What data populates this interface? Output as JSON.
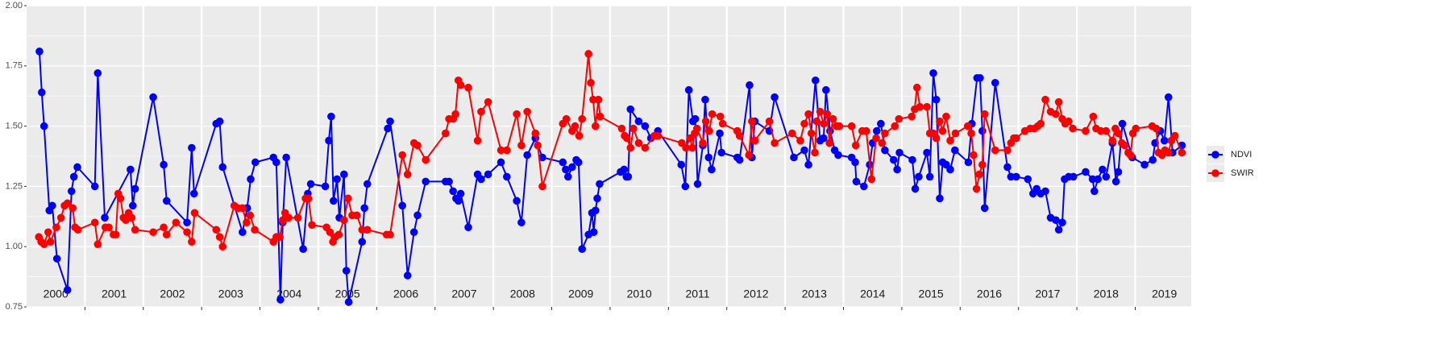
{
  "chart_data": {
    "type": "line",
    "xlim": [
      2000,
      2019.96
    ],
    "ylim": [
      0.75,
      2.0
    ],
    "yticks": [
      0.75,
      {
        "value": 1,
        "label": "1.00"
      },
      1.25,
      {
        "value": 1.5,
        "label": "1.50"
      },
      1.75,
      {
        "value": 2,
        "label": "2.00"
      }
    ],
    "yminor": [
      0.875,
      1.125,
      1.375,
      1.625,
      1.875
    ],
    "xgrid": [
      2001,
      2002,
      2003,
      2004,
      2005,
      2006,
      2007,
      2008,
      2009,
      2010,
      2011,
      2012,
      2013,
      2014,
      2015,
      2016,
      2017,
      2018,
      2019
    ],
    "xticks": [
      {
        "value": 2000.5,
        "label": "2000"
      },
      {
        "value": 2001.5,
        "label": "2001"
      },
      {
        "value": 2002.5,
        "label": "2002"
      },
      {
        "value": 2003.5,
        "label": "2003"
      },
      {
        "value": 2004.5,
        "label": "2004"
      },
      {
        "value": 2005.5,
        "label": "2005"
      },
      {
        "value": 2006.5,
        "label": "2006"
      },
      {
        "value": 2007.5,
        "label": "2007"
      },
      {
        "value": 2008.5,
        "label": "2008"
      },
      {
        "value": 2009.5,
        "label": "2009"
      },
      {
        "value": 2010.5,
        "label": "2010"
      },
      {
        "value": 2011.5,
        "label": "2011"
      },
      {
        "value": 2012.5,
        "label": "2012"
      },
      {
        "value": 2013.5,
        "label": "2013"
      },
      {
        "value": 2014.5,
        "label": "2014"
      },
      {
        "value": 2015.5,
        "label": "2015"
      },
      {
        "value": 2016.5,
        "label": "2016"
      },
      {
        "value": 2017.5,
        "label": "2017"
      },
      {
        "value": 2018.5,
        "label": "2018"
      },
      {
        "value": 2019.5,
        "label": "2019"
      }
    ],
    "grid": true,
    "legend": "right",
    "series": [
      {
        "name": "NDVI",
        "color": "#0000ff",
        "x": [
          2000.22,
          2000.26,
          2000.3,
          2000.39,
          2000.44,
          2000.52,
          2000.7,
          2000.77,
          2000.81,
          2000.87,
          2001.17,
          2001.22,
          2001.34,
          2001.78,
          2001.82,
          2001.86,
          2002.17,
          2002.35,
          2002.4,
          2002.75,
          2002.83,
          2002.87,
          2003.25,
          2003.31,
          2003.36,
          2003.7,
          2003.78,
          2003.84,
          2003.92,
          2004.23,
          2004.28,
          2004.35,
          2004.39,
          2004.45,
          2004.74,
          2004.82,
          2004.87,
          2005.12,
          2005.18,
          2005.22,
          2005.26,
          2005.32,
          2005.36,
          2005.44,
          2005.48,
          2005.52,
          2005.75,
          2005.79,
          2005.84,
          2006.19,
          2006.23,
          2006.44,
          2006.53,
          2006.64,
          2006.7,
          2006.84,
          2007.18,
          2007.24,
          2007.31,
          2007.36,
          2007.4,
          2007.44,
          2007.57,
          2007.73,
          2007.79,
          2007.91,
          2008.13,
          2008.23,
          2008.4,
          2008.48,
          2008.58,
          2008.72,
          2008.84,
          2009.19,
          2009.24,
          2009.28,
          2009.35,
          2009.42,
          2009.46,
          2009.52,
          2009.63,
          2009.69,
          2009.72,
          2009.75,
          2009.78,
          2009.82,
          2010.18,
          2010.24,
          2010.28,
          2010.31,
          2010.35,
          2010.49,
          2010.6,
          2010.7,
          2010.82,
          2011.22,
          2011.29,
          2011.35,
          2011.42,
          2011.46,
          2011.5,
          2011.59,
          2011.63,
          2011.69,
          2011.74,
          2011.88,
          2011.91,
          2012.18,
          2012.22,
          2012.39,
          2012.43,
          2012.48,
          2012.73,
          2012.82,
          2013.15,
          2013.33,
          2013.4,
          2013.52,
          2013.6,
          2013.66,
          2013.7,
          2013.77,
          2013.85,
          2013.91,
          2014.14,
          2014.2,
          2014.22,
          2014.35,
          2014.45,
          2014.5,
          2014.57,
          2014.64,
          2014.71,
          2014.86,
          2014.92,
          2014.96,
          2015.18,
          2015.23,
          2015.29,
          2015.43,
          2015.48,
          2015.54,
          2015.59,
          2015.65,
          2015.7,
          2015.76,
          2015.83,
          2015.91,
          2016.14,
          2016.2,
          2016.29,
          2016.34,
          2016.38,
          2016.42,
          2016.6,
          2016.81,
          2016.87,
          2016.96,
          2017.16,
          2017.25,
          2017.31,
          2017.38,
          2017.46,
          2017.55,
          2017.64,
          2017.69,
          2017.75,
          2017.79,
          2017.86,
          2017.94,
          2018.15,
          2018.27,
          2018.3,
          2018.36,
          2018.44,
          2018.5,
          2018.61,
          2018.67,
          2018.71,
          2018.78,
          2018.95,
          2019.16,
          2019.3,
          2019.34,
          2019.43,
          2019.5,
          2019.57,
          2019.64,
          2019.8
        ],
        "values": [
          1.81,
          1.64,
          1.5,
          1.15,
          1.17,
          0.95,
          0.82,
          1.23,
          1.29,
          1.33,
          1.25,
          1.72,
          1.12,
          1.32,
          1.17,
          1.24,
          1.62,
          1.34,
          1.19,
          1.1,
          1.41,
          1.22,
          1.51,
          1.52,
          1.33,
          1.06,
          1.16,
          1.28,
          1.35,
          1.37,
          1.35,
          0.78,
          1.1,
          1.37,
          0.99,
          1.22,
          1.26,
          1.25,
          1.44,
          1.54,
          1.19,
          1.28,
          1.12,
          1.3,
          0.9,
          0.77,
          1.02,
          1.16,
          1.26,
          1.49,
          1.52,
          1.17,
          0.88,
          1.06,
          1.13,
          1.27,
          1.27,
          1.27,
          1.23,
          1.2,
          1.19,
          1.22,
          1.08,
          1.3,
          1.28,
          1.3,
          1.35,
          1.29,
          1.19,
          1.1,
          1.38,
          1.45,
          1.37,
          1.35,
          1.32,
          1.29,
          1.33,
          1.36,
          1.35,
          0.99,
          1.05,
          1.14,
          1.06,
          1.15,
          1.2,
          1.26,
          1.31,
          1.32,
          1.29,
          1.29,
          1.57,
          1.52,
          1.5,
          1.45,
          1.48,
          1.34,
          1.25,
          1.65,
          1.52,
          1.53,
          1.26,
          1.42,
          1.61,
          1.37,
          1.32,
          1.47,
          1.39,
          1.37,
          1.36,
          1.67,
          1.37,
          1.52,
          1.48,
          1.62,
          1.37,
          1.4,
          1.34,
          1.69,
          1.44,
          1.45,
          1.65,
          1.48,
          1.4,
          1.38,
          1.37,
          1.35,
          1.27,
          1.25,
          1.34,
          1.43,
          1.48,
          1.51,
          1.4,
          1.36,
          1.32,
          1.39,
          1.36,
          1.24,
          1.29,
          1.39,
          1.29,
          1.72,
          1.61,
          1.2,
          1.35,
          1.34,
          1.32,
          1.4,
          1.35,
          1.51,
          1.7,
          1.7,
          1.48,
          1.16,
          1.68,
          1.33,
          1.29,
          1.29,
          1.28,
          1.22,
          1.24,
          1.22,
          1.23,
          1.12,
          1.11,
          1.07,
          1.1,
          1.28,
          1.29,
          1.29,
          1.31,
          1.28,
          1.23,
          1.28,
          1.32,
          1.29,
          1.43,
          1.27,
          1.31,
          1.51,
          1.37,
          1.34,
          1.36,
          1.43,
          1.48,
          1.44,
          1.62,
          1.39,
          1.42
        ]
      },
      {
        "name": "SWIR",
        "color": "#ff0000",
        "x": [
          2000.21,
          2000.25,
          2000.3,
          2000.37,
          2000.41,
          2000.51,
          2000.59,
          2000.65,
          2000.7,
          2000.79,
          2000.83,
          2000.88,
          2001.17,
          2001.22,
          2001.35,
          2001.41,
          2001.49,
          2001.53,
          2001.57,
          2001.61,
          2001.66,
          2001.7,
          2001.75,
          2001.8,
          2001.86,
          2002.17,
          2002.35,
          2002.4,
          2002.56,
          2002.75,
          2002.83,
          2002.88,
          2003.25,
          2003.31,
          2003.36,
          2003.56,
          2003.62,
          2003.7,
          2003.77,
          2003.83,
          2003.91,
          2004.23,
          2004.28,
          2004.34,
          2004.39,
          2004.43,
          2004.49,
          2004.65,
          2004.78,
          2004.83,
          2004.89,
          2005.14,
          2005.2,
          2005.25,
          2005.29,
          2005.35,
          2005.44,
          2005.51,
          2005.58,
          2005.66,
          2005.75,
          2005.84,
          2006.17,
          2006.23,
          2006.44,
          2006.53,
          2006.64,
          2006.7,
          2006.84,
          2007.18,
          2007.24,
          2007.31,
          2007.35,
          2007.4,
          2007.44,
          2007.57,
          2007.73,
          2007.79,
          2007.91,
          2008.13,
          2008.23,
          2008.4,
          2008.48,
          2008.58,
          2008.72,
          2008.76,
          2008.84,
          2009.19,
          2009.25,
          2009.35,
          2009.4,
          2009.47,
          2009.52,
          2009.63,
          2009.67,
          2009.71,
          2009.75,
          2009.8,
          2009.83,
          2010.2,
          2010.25,
          2010.29,
          2010.35,
          2010.4,
          2010.49,
          2010.6,
          2010.76,
          2010.82,
          2011.23,
          2011.3,
          2011.37,
          2011.41,
          2011.45,
          2011.49,
          2011.59,
          2011.64,
          2011.7,
          2011.75,
          2011.89,
          2011.93,
          2012.18,
          2012.22,
          2012.38,
          2012.43,
          2012.48,
          2012.73,
          2012.82,
          2013.12,
          2013.26,
          2013.33,
          2013.4,
          2013.45,
          2013.51,
          2013.54,
          2013.6,
          2013.66,
          2013.72,
          2013.76,
          2013.82,
          2013.88,
          2013.93,
          2014.14,
          2014.21,
          2014.32,
          2014.39,
          2014.48,
          2014.56,
          2014.66,
          2014.71,
          2014.88,
          2014.95,
          2015.17,
          2015.22,
          2015.26,
          2015.31,
          2015.43,
          2015.48,
          2015.54,
          2015.59,
          2015.65,
          2015.7,
          2015.76,
          2015.83,
          2015.92,
          2016.13,
          2016.19,
          2016.23,
          2016.28,
          2016.33,
          2016.38,
          2016.42,
          2016.6,
          2016.81,
          2016.87,
          2016.92,
          2016.96,
          2017.11,
          2017.2,
          2017.27,
          2017.33,
          2017.38,
          2017.46,
          2017.55,
          2017.64,
          2017.69,
          2017.75,
          2017.8,
          2017.86,
          2017.93,
          2018.15,
          2018.28,
          2018.33,
          2018.41,
          2018.5,
          2018.61,
          2018.66,
          2018.71,
          2018.77,
          2018.82,
          2018.88,
          2018.92,
          2018.96,
          2019.01,
          2019.29,
          2019.36,
          2019.4,
          2019.46,
          2019.51,
          2019.57,
          2019.62,
          2019.68,
          2019.8
        ],
        "values": [
          1.04,
          1.02,
          1.01,
          1.06,
          1.02,
          1.08,
          1.12,
          1.17,
          1.18,
          1.16,
          1.08,
          1.07,
          1.1,
          1.01,
          1.08,
          1.08,
          1.05,
          1.05,
          1.22,
          1.2,
          1.12,
          1.11,
          1.14,
          1.12,
          1.07,
          1.06,
          1.08,
          1.05,
          1.1,
          1.06,
          1.02,
          1.14,
          1.07,
          1.04,
          1.0,
          1.17,
          1.16,
          1.16,
          1.1,
          1.13,
          1.07,
          1.02,
          1.04,
          1.04,
          1.11,
          1.14,
          1.12,
          1.12,
          1.2,
          1.2,
          1.09,
          1.08,
          1.06,
          1.02,
          1.04,
          1.05,
          1.11,
          1.2,
          1.13,
          1.13,
          1.07,
          1.07,
          1.05,
          1.05,
          1.38,
          1.3,
          1.43,
          1.42,
          1.36,
          1.47,
          1.53,
          1.53,
          1.55,
          1.69,
          1.67,
          1.66,
          1.44,
          1.56,
          1.6,
          1.4,
          1.4,
          1.55,
          1.42,
          1.56,
          1.47,
          1.42,
          1.25,
          1.51,
          1.53,
          1.48,
          1.5,
          1.46,
          1.53,
          1.8,
          1.68,
          1.61,
          1.5,
          1.61,
          1.54,
          1.49,
          1.46,
          1.45,
          1.41,
          1.49,
          1.43,
          1.41,
          1.46,
          1.46,
          1.43,
          1.41,
          1.45,
          1.41,
          1.47,
          1.49,
          1.43,
          1.52,
          1.48,
          1.55,
          1.54,
          1.51,
          1.48,
          1.46,
          1.38,
          1.52,
          1.44,
          1.52,
          1.43,
          1.47,
          1.44,
          1.51,
          1.55,
          1.47,
          1.39,
          1.52,
          1.56,
          1.51,
          1.55,
          1.43,
          1.53,
          1.5,
          1.5,
          1.5,
          1.42,
          1.48,
          1.48,
          1.28,
          1.45,
          1.43,
          1.47,
          1.5,
          1.53,
          1.54,
          1.57,
          1.66,
          1.58,
          1.58,
          1.47,
          1.47,
          1.45,
          1.52,
          1.48,
          1.54,
          1.44,
          1.47,
          1.5,
          1.47,
          1.38,
          1.24,
          1.3,
          1.34,
          1.55,
          1.4,
          1.4,
          1.43,
          1.45,
          1.45,
          1.48,
          1.49,
          1.49,
          1.5,
          1.51,
          1.61,
          1.56,
          1.55,
          1.6,
          1.53,
          1.51,
          1.52,
          1.49,
          1.48,
          1.54,
          1.49,
          1.48,
          1.48,
          1.44,
          1.49,
          1.47,
          1.43,
          1.42,
          1.39,
          1.38,
          1.47,
          1.49,
          1.5,
          1.49,
          1.39,
          1.38,
          1.4,
          1.39,
          1.44,
          1.46,
          1.39
        ]
      }
    ]
  }
}
